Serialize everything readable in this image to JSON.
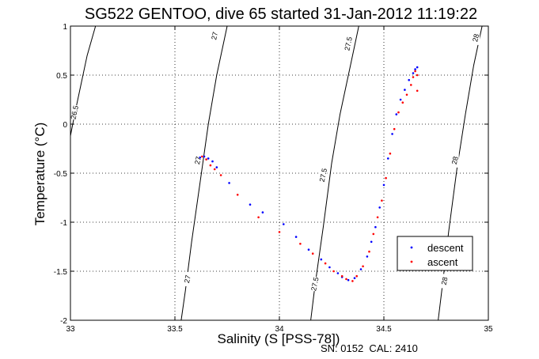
{
  "chart_data": {
    "type": "scatter",
    "title": "SG522 GENTOO, dive 65 started 31-Jan-2012 11:19:22",
    "xlabel": "Salinity (S [PSS-78])",
    "ylabel": "Temperature (°C)",
    "footer": "SN: 0152  CAL: 2410",
    "xlim": [
      33,
      35
    ],
    "ylim": [
      -2,
      1
    ],
    "xticks": [
      33,
      33.5,
      34,
      34.5,
      35
    ],
    "xtick_labels": [
      "33",
      "33.5",
      "34",
      "34.5",
      "35"
    ],
    "yticks": [
      -2,
      -1.5,
      -1,
      -0.5,
      0,
      0.5,
      1
    ],
    "ytick_labels": [
      "-2",
      "-1.5",
      "-1",
      "-0.5",
      "0",
      "0.5",
      "1"
    ],
    "grid": true,
    "legend_position": "bottom-right",
    "series": [
      {
        "name": "descent",
        "color": "#0000ff",
        "x": [
          33.62,
          33.64,
          33.66,
          33.68,
          33.7,
          33.76,
          33.86,
          33.92,
          34.02,
          34.08,
          34.14,
          34.2,
          34.24,
          34.28,
          34.3,
          34.33,
          34.36,
          34.39,
          34.42,
          34.44,
          34.46,
          34.48,
          34.5,
          34.52,
          34.54,
          34.56,
          34.58,
          34.6,
          34.62,
          34.64,
          34.65,
          34.66
        ],
        "y": [
          -0.34,
          -0.33,
          -0.35,
          -0.38,
          -0.44,
          -0.6,
          -0.82,
          -0.9,
          -1.02,
          -1.15,
          -1.28,
          -1.38,
          -1.46,
          -1.52,
          -1.56,
          -1.59,
          -1.57,
          -1.48,
          -1.35,
          -1.2,
          -1.05,
          -0.85,
          -0.62,
          -0.35,
          -0.1,
          0.1,
          0.25,
          0.35,
          0.45,
          0.52,
          0.56,
          0.58
        ]
      },
      {
        "name": "ascent",
        "color": "#ff0000",
        "x": [
          33.63,
          33.65,
          33.67,
          33.69,
          33.72,
          33.8,
          33.9,
          34.0,
          34.1,
          34.16,
          34.22,
          34.26,
          34.3,
          34.32,
          34.35,
          34.37,
          34.4,
          34.43,
          34.45,
          34.47,
          34.49,
          34.51,
          34.53,
          34.55,
          34.57,
          34.59,
          34.61,
          34.63,
          34.64,
          34.65,
          34.66,
          34.66
        ],
        "y": [
          -0.33,
          -0.36,
          -0.42,
          -0.46,
          -0.52,
          -0.72,
          -0.95,
          -1.1,
          -1.22,
          -1.32,
          -1.42,
          -1.5,
          -1.55,
          -1.58,
          -1.6,
          -1.55,
          -1.45,
          -1.3,
          -1.12,
          -0.95,
          -0.78,
          -0.55,
          -0.3,
          -0.05,
          0.12,
          0.22,
          0.3,
          0.4,
          0.48,
          0.54,
          0.5,
          0.34
        ]
      }
    ],
    "contours": [
      {
        "label": "26.5",
        "s": [
          33.0,
          33.02,
          33.05,
          33.08,
          33.12
        ],
        "t": [
          -0.12,
          0.1,
          0.4,
          0.7,
          1.0
        ]
      },
      {
        "label": "27",
        "s": [
          33.53,
          33.55,
          33.58,
          33.62,
          33.66,
          33.7,
          33.75
        ],
        "t": [
          -2.0,
          -1.7,
          -1.2,
          -0.6,
          0.0,
          0.5,
          1.0
        ]
      },
      {
        "label": "27.5",
        "s": [
          34.15,
          34.17,
          34.21,
          34.25,
          34.29,
          34.34,
          34.38
        ],
        "t": [
          -2.0,
          -1.65,
          -1.05,
          -0.4,
          0.1,
          0.6,
          1.0
        ]
      },
      {
        "label": "28",
        "s": [
          34.76,
          34.78,
          34.81,
          34.85,
          34.89,
          34.93,
          34.97
        ],
        "t": [
          -2.0,
          -1.65,
          -1.1,
          -0.45,
          0.1,
          0.6,
          1.0
        ]
      }
    ],
    "contour_labels": [
      {
        "text": "26.5",
        "s": 33.02,
        "t": 0.12
      },
      {
        "text": "27",
        "s": 33.61,
        "t": -0.37
      },
      {
        "text": "27",
        "s": 33.56,
        "t": -1.58
      },
      {
        "text": "27",
        "s": 33.69,
        "t": 0.9
      },
      {
        "text": "27.5",
        "s": 34.17,
        "t": -1.63
      },
      {
        "text": "27.5",
        "s": 34.21,
        "t": -0.52
      },
      {
        "text": "27.5",
        "s": 34.33,
        "t": 0.82
      },
      {
        "text": "28",
        "s": 34.79,
        "t": -1.6
      },
      {
        "text": "28",
        "s": 34.84,
        "t": -0.37
      },
      {
        "text": "28",
        "s": 34.94,
        "t": 0.88
      }
    ]
  }
}
